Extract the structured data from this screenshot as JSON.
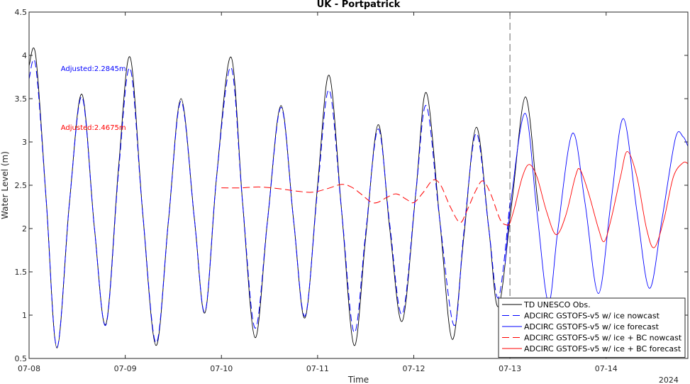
{
  "chart_data": {
    "type": "line",
    "title": "UK - Portpatrick",
    "xlabel": "Time",
    "ylabel": "Water Level (m)",
    "xlim": [
      0,
      6.85
    ],
    "ylim": [
      0.5,
      4.5
    ],
    "x_unit": "days since 07-08 00:00",
    "year_label": "2024",
    "x_ticks": [
      {
        "x": 0,
        "label": "07-08"
      },
      {
        "x": 1,
        "label": "07-09"
      },
      {
        "x": 2,
        "label": "07-10"
      },
      {
        "x": 3,
        "label": "07-11"
      },
      {
        "x": 4,
        "label": "07-12"
      },
      {
        "x": 5,
        "label": "07-13"
      },
      {
        "x": 6,
        "label": "07-14"
      }
    ],
    "y_ticks": [
      {
        "y": 0.5,
        "label": "0.5"
      },
      {
        "y": 1,
        "label": "1"
      },
      {
        "y": 1.5,
        "label": "1.5"
      },
      {
        "y": 2,
        "label": "2"
      },
      {
        "y": 2.5,
        "label": "2.5"
      },
      {
        "y": 3,
        "label": "3"
      },
      {
        "y": 3.5,
        "label": "3.5"
      },
      {
        "y": 4,
        "label": "4"
      },
      {
        "y": 4.5,
        "label": "4.5"
      }
    ],
    "vline_x": 5,
    "annotations": [
      {
        "text": "Adjusted:2.2845m",
        "color": "#0000ff",
        "x": 0.33,
        "y": 3.82
      },
      {
        "text": "Adjusted:2.4675m",
        "color": "#ff0000",
        "x": 0.33,
        "y": 3.14
      }
    ],
    "legend_position": "bottom-right",
    "series": [
      {
        "name": "TD UNESCO Obs.",
        "color": "#000000",
        "dash": false,
        "points": [
          [
            0,
            3.88
          ],
          [
            0.07,
            3.99
          ],
          [
            0.18,
            2.3
          ],
          [
            0.29,
            0.62
          ],
          [
            0.42,
            2.3
          ],
          [
            0.55,
            3.55
          ],
          [
            0.68,
            2.0
          ],
          [
            0.8,
            0.9
          ],
          [
            0.93,
            2.7
          ],
          [
            1.05,
            3.98
          ],
          [
            1.18,
            2.2
          ],
          [
            1.32,
            0.65
          ],
          [
            1.45,
            2.1
          ],
          [
            1.58,
            3.5
          ],
          [
            1.72,
            2.1
          ],
          [
            1.83,
            1.03
          ],
          [
            1.95,
            2.6
          ],
          [
            2.1,
            3.98
          ],
          [
            2.22,
            2.3
          ],
          [
            2.35,
            0.74
          ],
          [
            2.48,
            2.1
          ],
          [
            2.62,
            3.42
          ],
          [
            2.75,
            2.1
          ],
          [
            2.87,
            0.97
          ],
          [
            3.0,
            2.5
          ],
          [
            3.12,
            3.77
          ],
          [
            3.25,
            2.2
          ],
          [
            3.38,
            0.65
          ],
          [
            3.5,
            1.9
          ],
          [
            3.63,
            3.2
          ],
          [
            3.75,
            2.0
          ],
          [
            3.88,
            0.93
          ],
          [
            4.02,
            2.4
          ],
          [
            4.13,
            3.57
          ],
          [
            4.27,
            2.1
          ],
          [
            4.4,
            0.72
          ],
          [
            4.52,
            1.9
          ],
          [
            4.65,
            3.17
          ],
          [
            4.78,
            2.0
          ],
          [
            4.88,
            1.1
          ],
          [
            5.02,
            2.3
          ],
          [
            5.16,
            3.52
          ],
          [
            5.28,
            2.4
          ],
          [
            5.3,
            2.2
          ]
        ]
      },
      {
        "name": "ADCIRC GSTOFS-v5 w/ ice nowcast",
        "color": "#0000ff",
        "dash": true,
        "points": [
          [
            0,
            3.73
          ],
          [
            0.07,
            3.87
          ],
          [
            0.18,
            2.3
          ],
          [
            0.29,
            0.63
          ],
          [
            0.42,
            2.3
          ],
          [
            0.55,
            3.52
          ],
          [
            0.68,
            2.0
          ],
          [
            0.8,
            0.89
          ],
          [
            0.93,
            2.65
          ],
          [
            1.05,
            3.85
          ],
          [
            1.18,
            2.2
          ],
          [
            1.32,
            0.68
          ],
          [
            1.45,
            2.1
          ],
          [
            1.58,
            3.47
          ],
          [
            1.72,
            2.1
          ],
          [
            1.83,
            1.04
          ],
          [
            1.95,
            2.6
          ],
          [
            2.1,
            3.86
          ],
          [
            2.22,
            2.3
          ],
          [
            2.35,
            0.85
          ],
          [
            2.48,
            2.1
          ],
          [
            2.62,
            3.4
          ],
          [
            2.75,
            2.1
          ],
          [
            2.87,
            0.99
          ],
          [
            3.0,
            2.45
          ],
          [
            3.12,
            3.6
          ],
          [
            3.25,
            2.2
          ],
          [
            3.38,
            0.8
          ],
          [
            3.5,
            1.95
          ],
          [
            3.63,
            3.15
          ],
          [
            3.75,
            2.05
          ],
          [
            3.88,
            1.01
          ],
          [
            4.02,
            2.4
          ],
          [
            4.13,
            3.42
          ],
          [
            4.27,
            2.1
          ],
          [
            4.42,
            0.88
          ],
          [
            4.52,
            1.95
          ],
          [
            4.65,
            3.1
          ],
          [
            4.78,
            2.0
          ],
          [
            4.88,
            1.2
          ],
          [
            5.0,
            2.3
          ]
        ]
      },
      {
        "name": "ADCIRC GSTOFS-v5 w/ ice forecast",
        "color": "#0000ff",
        "dash": false,
        "points": [
          [
            4.95,
            1.6
          ],
          [
            5.02,
            2.4
          ],
          [
            5.16,
            3.33
          ],
          [
            5.28,
            2.2
          ],
          [
            5.4,
            1.15
          ],
          [
            5.5,
            2.0
          ],
          [
            5.65,
            3.1
          ],
          [
            5.78,
            2.3
          ],
          [
            5.92,
            1.25
          ],
          [
            6.05,
            2.3
          ],
          [
            6.18,
            3.27
          ],
          [
            6.32,
            2.2
          ],
          [
            6.45,
            1.31
          ],
          [
            6.58,
            2.1
          ],
          [
            6.72,
            3.04
          ],
          [
            6.8,
            3.06
          ],
          [
            6.85,
            2.95
          ]
        ]
      },
      {
        "name": "ADCIRC GSTOFS-v5 w/ ice + BC nowcast",
        "color": "#ff0000",
        "dash": true,
        "points": [
          [
            2.0,
            2.47
          ],
          [
            2.2,
            2.47
          ],
          [
            2.4,
            2.48
          ],
          [
            2.6,
            2.46
          ],
          [
            2.8,
            2.43
          ],
          [
            2.95,
            2.42
          ],
          [
            3.1,
            2.46
          ],
          [
            3.25,
            2.51
          ],
          [
            3.35,
            2.48
          ],
          [
            3.45,
            2.4
          ],
          [
            3.55,
            2.31
          ],
          [
            3.62,
            2.3
          ],
          [
            3.72,
            2.36
          ],
          [
            3.82,
            2.4
          ],
          [
            3.92,
            2.34
          ],
          [
            4.0,
            2.3
          ],
          [
            4.1,
            2.42
          ],
          [
            4.2,
            2.56
          ],
          [
            4.28,
            2.5
          ],
          [
            4.38,
            2.25
          ],
          [
            4.48,
            2.07
          ],
          [
            4.55,
            2.2
          ],
          [
            4.65,
            2.45
          ],
          [
            4.72,
            2.55
          ],
          [
            4.8,
            2.4
          ],
          [
            4.9,
            2.1
          ],
          [
            4.97,
            2.04
          ],
          [
            5.0,
            2.06
          ]
        ]
      },
      {
        "name": "ADCIRC GSTOFS-v5 w/ ice + BC forecast",
        "color": "#ff0000",
        "dash": false,
        "points": [
          [
            5.0,
            2.06
          ],
          [
            5.05,
            2.25
          ],
          [
            5.13,
            2.6
          ],
          [
            5.2,
            2.74
          ],
          [
            5.28,
            2.6
          ],
          [
            5.38,
            2.2
          ],
          [
            5.48,
            1.93
          ],
          [
            5.58,
            2.15
          ],
          [
            5.68,
            2.6
          ],
          [
            5.73,
            2.68
          ],
          [
            5.82,
            2.4
          ],
          [
            5.92,
            2.0
          ],
          [
            5.98,
            1.85
          ],
          [
            6.05,
            2.1
          ],
          [
            6.15,
            2.6
          ],
          [
            6.22,
            2.89
          ],
          [
            6.32,
            2.6
          ],
          [
            6.42,
            2.0
          ],
          [
            6.5,
            1.78
          ],
          [
            6.6,
            2.1
          ],
          [
            6.7,
            2.6
          ],
          [
            6.8,
            2.76
          ],
          [
            6.85,
            2.75
          ]
        ]
      }
    ]
  }
}
